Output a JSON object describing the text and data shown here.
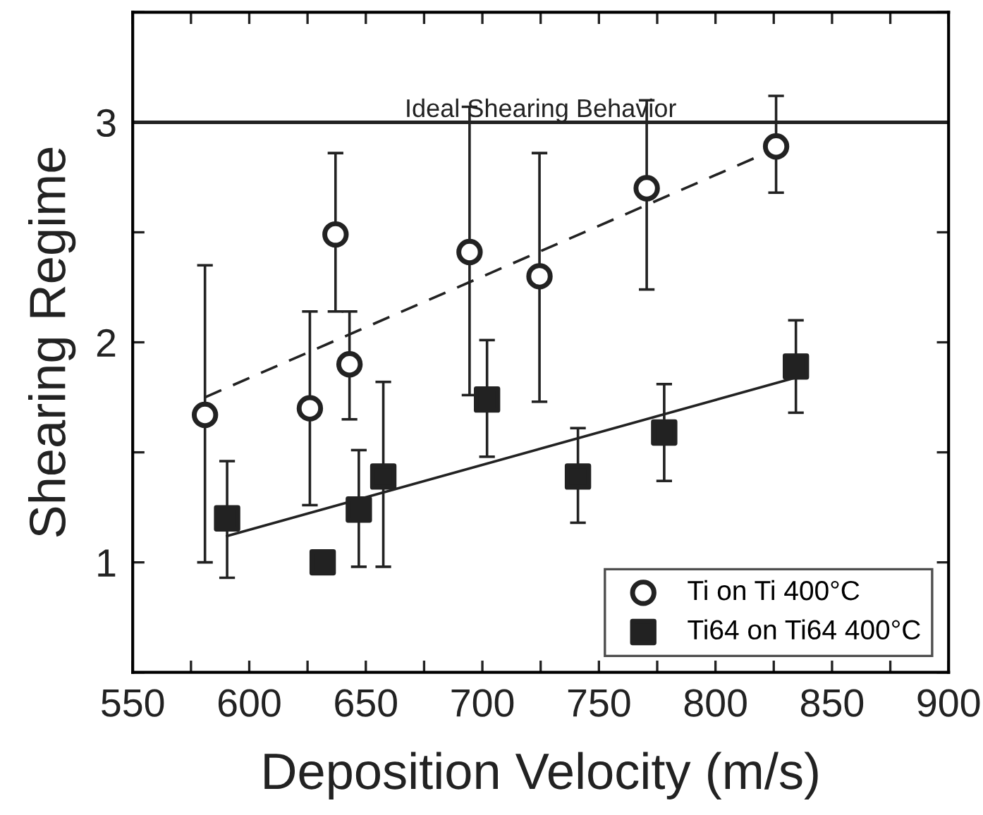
{
  "chart_data": {
    "type": "scatter",
    "xlabel": "Deposition Velocity (m/s)",
    "ylabel": "Shearing Regime",
    "xlim": [
      550,
      900
    ],
    "ylim": [
      0.5,
      3.5
    ],
    "xticks": [
      550,
      {
        "value": 575,
        "label": null
      },
      600,
      {
        "value": 625,
        "label": null
      },
      650,
      {
        "value": 675,
        "label": null
      },
      700,
      {
        "value": 725,
        "label": null
      },
      750,
      {
        "value": 775,
        "label": null
      },
      800,
      {
        "value": 825,
        "label": null
      },
      850,
      {
        "value": 875,
        "label": null
      },
      900
    ],
    "yticks": [
      {
        "value": 0.5,
        "label": null
      },
      1,
      {
        "value": 1.5,
        "label": null
      },
      2,
      {
        "value": 2.5,
        "label": null
      },
      3,
      {
        "value": 3.5,
        "label": null
      }
    ],
    "grid": false,
    "legend": "bottom right",
    "ref_lines": [
      {
        "axis": "y",
        "value": 3,
        "label": "Ideal Shearing Behavior",
        "color": "#222222",
        "line_style": "solid"
      }
    ],
    "series": [
      {
        "name": "Ti on Ti 400°C",
        "marker": "circle",
        "color": "#222222",
        "x": [
          581,
          626,
          637,
          643,
          694.5,
          724.5,
          770.5,
          826
        ],
        "values": [
          1.67,
          1.7,
          2.49,
          1.9,
          2.41,
          2.3,
          2.7,
          2.89
        ],
        "errors": [
          [
            1.0,
            2.35
          ],
          [
            1.26,
            2.14
          ],
          [
            2.14,
            2.86
          ],
          [
            1.65,
            2.14
          ],
          [
            1.76,
            3.07
          ],
          [
            1.73,
            2.86
          ],
          [
            2.24,
            3.1
          ],
          [
            2.68,
            3.12
          ]
        ]
      },
      {
        "name": "Ti64 on Ti64 400°C",
        "marker": "square",
        "color": "#222222",
        "x": [
          590.5,
          631.5,
          647,
          657.5,
          702,
          741,
          778,
          834.5
        ],
        "values": [
          1.2,
          1.0,
          1.24,
          1.39,
          1.74,
          1.39,
          1.59,
          1.89
        ],
        "errors": [
          [
            0.93,
            1.46
          ],
          null,
          [
            0.98,
            1.51
          ],
          [
            0.98,
            1.82
          ],
          [
            1.48,
            2.01
          ],
          [
            1.18,
            1.61
          ],
          [
            1.37,
            1.81
          ],
          [
            1.68,
            2.1
          ]
        ]
      },
      {
        "type": "line",
        "line_style": "dashed",
        "marker": "none",
        "color": "#222222",
        "x": [
          581,
          826
        ],
        "values": [
          1.75,
          2.88
        ]
      },
      {
        "type": "line",
        "line_style": "solid",
        "marker": "none",
        "color": "#222222",
        "x": [
          590.5,
          834.5
        ],
        "values": [
          1.12,
          1.84
        ]
      }
    ]
  }
}
